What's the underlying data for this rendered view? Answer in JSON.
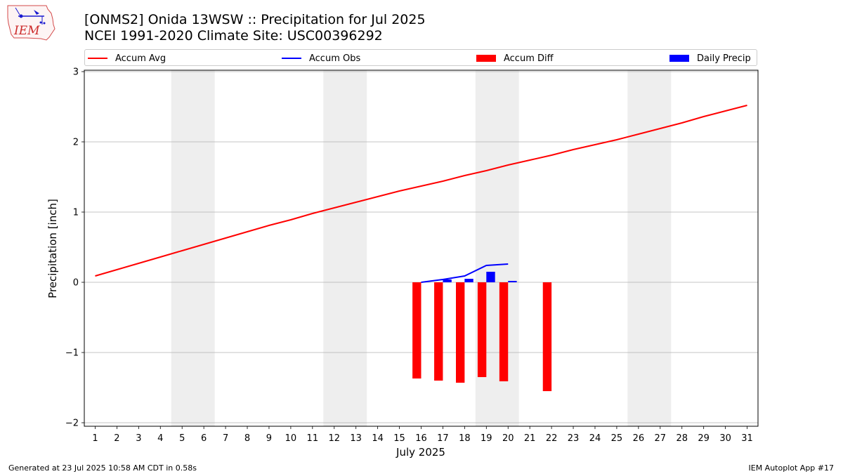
{
  "header": {
    "logo_text": "IEM",
    "title_line1": "[ONMS2] Onida 13WSW :: Precipitation for Jul 2025",
    "title_line2": "NCEI 1991-2020 Climate Site: USC00396292"
  },
  "legend": {
    "items": [
      {
        "label": "Accum Avg",
        "kind": "line",
        "color": "#ff0000"
      },
      {
        "label": "Accum Obs",
        "kind": "line",
        "color": "#0000ff"
      },
      {
        "label": "Accum Diff",
        "kind": "patch",
        "color": "#ff0000"
      },
      {
        "label": "Daily Precip",
        "kind": "patch",
        "color": "#0000ff"
      }
    ],
    "placement": "top"
  },
  "footer": {
    "left": "Generated at 23 Jul 2025 10:58 AM CDT in 0.58s",
    "right": "IEM Autoplot App #17"
  },
  "chart_data": {
    "type": "bar",
    "xlabel": "July 2025",
    "ylabel": "Precipitation [inch]",
    "xlim": [
      0.5,
      31.5
    ],
    "ylim": [
      -2.05,
      3.02
    ],
    "x_ticks": [
      1,
      2,
      3,
      4,
      5,
      6,
      7,
      8,
      9,
      10,
      11,
      12,
      13,
      14,
      15,
      16,
      17,
      18,
      19,
      20,
      21,
      22,
      23,
      24,
      25,
      26,
      27,
      28,
      29,
      30,
      31
    ],
    "y_ticks": [
      {
        "value": -2,
        "label": "−2"
      },
      {
        "value": -1,
        "label": "−1"
      },
      {
        "value": 0,
        "label": "0"
      },
      {
        "value": 1,
        "label": "1"
      },
      {
        "value": 2,
        "label": "2"
      },
      {
        "value": 3,
        "label": "3"
      }
    ],
    "grid": "horizontal",
    "weekend_shading": [
      [
        4.5,
        6.5
      ],
      [
        11.5,
        13.5
      ],
      [
        18.5,
        20.5
      ],
      [
        25.5,
        27.5
      ]
    ],
    "colors": {
      "avg": "#ff0000",
      "obs": "#0000ff",
      "diff": "#ff0000",
      "daily": "#0000ff",
      "weekend": "#eeeeee",
      "grid": "#b0b0b0"
    },
    "series": [
      {
        "name": "Accum Avg",
        "kind": "line",
        "x": [
          1,
          2,
          3,
          4,
          5,
          6,
          7,
          8,
          9,
          10,
          11,
          12,
          13,
          14,
          15,
          16,
          17,
          18,
          19,
          20,
          21,
          22,
          23,
          24,
          25,
          26,
          27,
          28,
          29,
          30,
          31
        ],
        "values": [
          0.09,
          0.18,
          0.27,
          0.36,
          0.45,
          0.54,
          0.63,
          0.72,
          0.81,
          0.89,
          0.98,
          1.06,
          1.14,
          1.22,
          1.3,
          1.37,
          1.44,
          1.52,
          1.59,
          1.67,
          1.74,
          1.81,
          1.89,
          1.96,
          2.03,
          2.11,
          2.19,
          2.27,
          2.36,
          2.44,
          2.52
        ]
      },
      {
        "name": "Accum Obs",
        "kind": "line",
        "x": [
          16,
          17,
          18,
          19,
          20
        ],
        "values": [
          0.0,
          0.04,
          0.09,
          0.24,
          0.26
        ]
      },
      {
        "name": "Accum Diff",
        "kind": "bar",
        "x": [
          16,
          17,
          18,
          19,
          20,
          22
        ],
        "values": [
          -1.37,
          -1.4,
          -1.43,
          -1.35,
          -1.41,
          -1.55
        ]
      },
      {
        "name": "Daily Precip",
        "kind": "bar",
        "x": [
          17,
          18,
          19,
          20
        ],
        "values": [
          0.04,
          0.05,
          0.15,
          0.02
        ]
      }
    ]
  }
}
